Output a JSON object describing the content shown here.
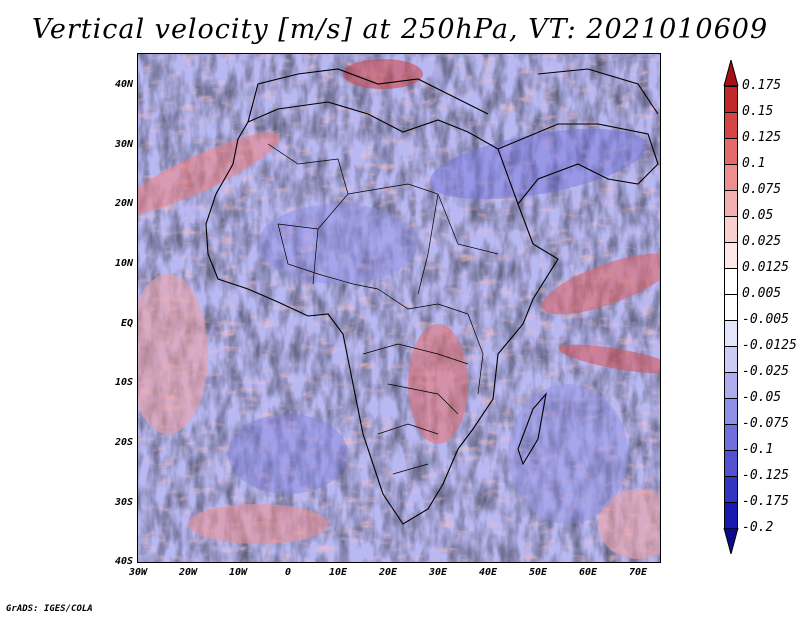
{
  "title": "Vertical velocity [m/s] at 250hPa, VT: 2021010609",
  "footer": "GrADS: IGES/COLA",
  "map": {
    "region": "Africa",
    "variable": "Vertical velocity",
    "units": "m/s",
    "level": "250hPa",
    "valid_time": "2021010609",
    "lat_range": [
      -40,
      45
    ],
    "lon_range": [
      -30,
      75
    ],
    "lat_labels": [
      "40N",
      "30N",
      "20N",
      "10N",
      "EQ",
      "10S",
      "20S",
      "30S",
      "40S"
    ],
    "lon_labels": [
      "30W",
      "20W",
      "10W",
      "0",
      "10E",
      "20E",
      "30E",
      "40E",
      "50E",
      "60E",
      "70E"
    ]
  },
  "colorbar": {
    "labels": [
      "0.175",
      "0.15",
      "0.125",
      "0.1",
      "0.075",
      "0.05",
      "0.025",
      "0.0125",
      "0.005",
      "-0.005",
      "-0.0125",
      "-0.025",
      "-0.05",
      "-0.075",
      "-0.1",
      "-0.125",
      "-0.175",
      "-0.2"
    ],
    "colors": [
      "#a50f15",
      "#c0282a",
      "#d64545",
      "#e56a6a",
      "#ee8f8f",
      "#f4b0b0",
      "#f9cfcf",
      "#fce6e6",
      "#ffffff",
      "#ffffff",
      "#e4e4fb",
      "#cbcbf5",
      "#adadee",
      "#8f8fe6",
      "#7070dc",
      "#5252d0",
      "#3434c2",
      "#1a1ab0",
      "#0a0a8c"
    ]
  }
}
